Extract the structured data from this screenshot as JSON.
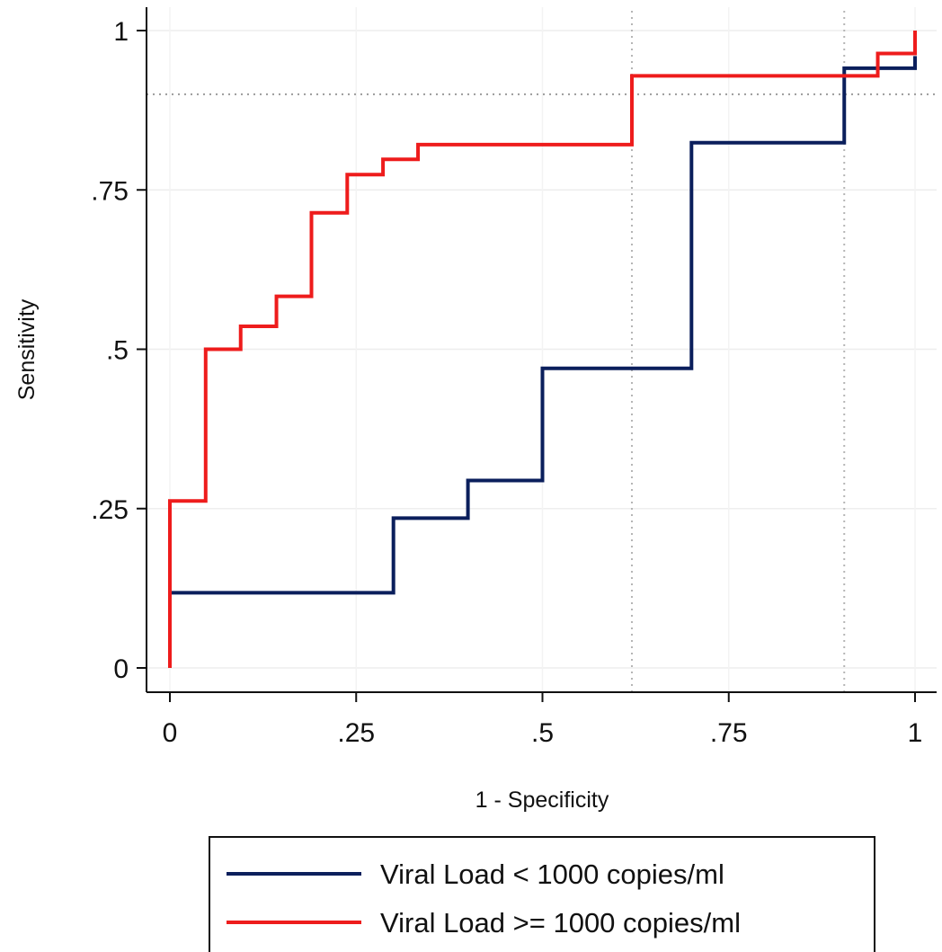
{
  "chart_data": {
    "type": "line",
    "title": "",
    "xlabel": "1 - Specificity",
    "ylabel": "Sensitivity",
    "xlim": [
      0,
      1
    ],
    "ylim": [
      0,
      1
    ],
    "x_ticks": [
      {
        "value": 0,
        "label": "0"
      },
      {
        "value": 0.25,
        "label": ".25"
      },
      {
        "value": 0.5,
        "label": ".5"
      },
      {
        "value": 0.75,
        "label": ".75"
      },
      {
        "value": 1,
        "label": "1"
      }
    ],
    "y_ticks": [
      {
        "value": 0,
        "label": "0"
      },
      {
        "value": 0.25,
        "label": ".25"
      },
      {
        "value": 0.5,
        "label": ".5"
      },
      {
        "value": 0.75,
        "label": ".75"
      },
      {
        "value": 1,
        "label": "1"
      }
    ],
    "grid": true,
    "reference_lines": {
      "horizontal": [
        0.9
      ],
      "vertical": [
        0.62,
        0.905
      ]
    },
    "legend_position": "bottom",
    "series": [
      {
        "name": "Viral Load < 1000 copies/ml",
        "color": "#0b1f5c",
        "step": true,
        "x": [
          0,
          0,
          0.3,
          0.4,
          0.5,
          0.7,
          0.905,
          1,
          1
        ],
        "y": [
          0,
          0.118,
          0.235,
          0.294,
          0.47,
          0.824,
          0.941,
          0.941,
          0.96
        ]
      },
      {
        "name": "Viral Load >= 1000 copies/ml",
        "color": "#ee1c1c",
        "step": true,
        "x": [
          0,
          0,
          0.048,
          0.095,
          0.143,
          0.19,
          0.238,
          0.286,
          0.333,
          0.62,
          0.95,
          1,
          1
        ],
        "y": [
          0,
          0.262,
          0.5,
          0.536,
          0.583,
          0.714,
          0.774,
          0.798,
          0.821,
          0.929,
          0.964,
          0.964,
          1
        ]
      }
    ]
  }
}
